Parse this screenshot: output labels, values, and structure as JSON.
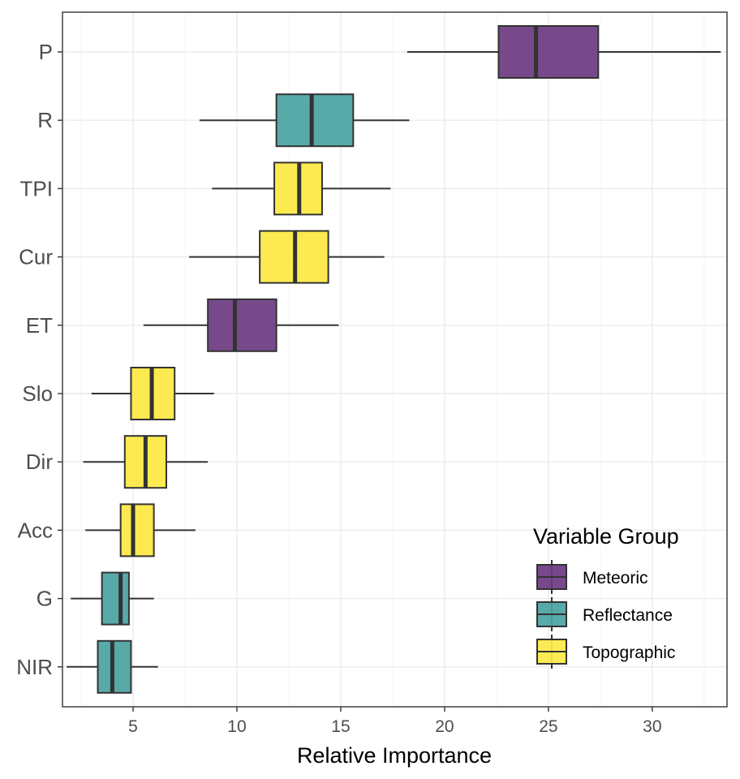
{
  "chart_data": {
    "type": "boxplot",
    "xlabel": "Relative Importance",
    "ylabel": "",
    "xlim": [
      1.6,
      33.6
    ],
    "xticks": [
      5,
      10,
      15,
      20,
      25,
      30
    ],
    "grid": true,
    "orientation": "horizontal",
    "legend": {
      "title": "Variable Group",
      "position": "bottom-right",
      "entries": [
        "Meteoric",
        "Reflectance",
        "Topographic"
      ]
    },
    "group_colors": {
      "Meteoric": "#6b3a80",
      "Reflectance": "#4aa3a2",
      "Topographic": "#fde947"
    },
    "boxes": [
      {
        "label": "P",
        "group": "Meteoric",
        "min": 18.2,
        "q1": 22.6,
        "median": 24.4,
        "q3": 27.4,
        "max": 33.3
      },
      {
        "label": "R",
        "group": "Reflectance",
        "min": 8.2,
        "q1": 11.9,
        "median": 13.6,
        "q3": 15.6,
        "max": 18.3
      },
      {
        "label": "TPI",
        "group": "Topographic",
        "min": 8.8,
        "q1": 11.8,
        "median": 13.0,
        "q3": 14.1,
        "max": 17.4
      },
      {
        "label": "Cur",
        "group": "Topographic",
        "min": 7.7,
        "q1": 11.1,
        "median": 12.8,
        "q3": 14.4,
        "max": 17.1
      },
      {
        "label": "ET",
        "group": "Meteoric",
        "min": 5.5,
        "q1": 8.6,
        "median": 9.9,
        "q3": 11.9,
        "max": 14.9
      },
      {
        "label": "Slo",
        "group": "Topographic",
        "min": 3.0,
        "q1": 4.9,
        "median": 5.9,
        "q3": 7.0,
        "max": 8.9
      },
      {
        "label": "Dir",
        "group": "Topographic",
        "min": 2.6,
        "q1": 4.6,
        "median": 5.6,
        "q3": 6.6,
        "max": 8.6
      },
      {
        "label": "Acc",
        "group": "Topographic",
        "min": 2.7,
        "q1": 4.4,
        "median": 5.0,
        "q3": 6.0,
        "max": 8.0
      },
      {
        "label": "G",
        "group": "Reflectance",
        "min": 2.0,
        "q1": 3.5,
        "median": 4.4,
        "q3": 4.8,
        "max": 6.0
      },
      {
        "label": "NIR",
        "group": "Reflectance",
        "min": 1.8,
        "q1": 3.3,
        "median": 4.0,
        "q3": 4.9,
        "max": 6.2
      }
    ]
  }
}
